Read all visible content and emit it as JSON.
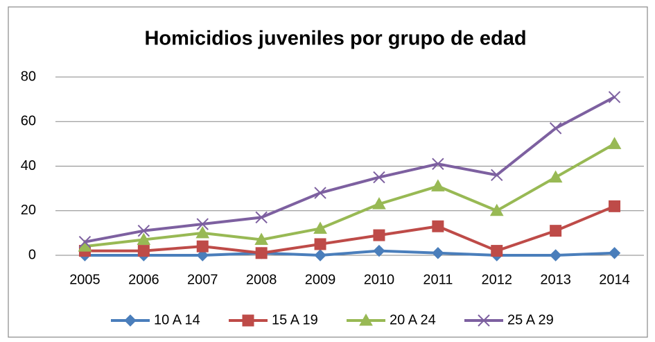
{
  "chart_data": {
    "type": "line",
    "title": "Homicidios juveniles por grupo de edad",
    "categories": [
      "2005",
      "2006",
      "2007",
      "2008",
      "2009",
      "2010",
      "2011",
      "2012",
      "2013",
      "2014"
    ],
    "series": [
      {
        "name": "10 A 14",
        "color": "#4a7ebb",
        "marker": "diamond",
        "values": [
          0,
          0,
          0,
          1,
          0,
          2,
          1,
          0,
          0,
          1
        ]
      },
      {
        "name": "15 A 19",
        "color": "#be4b48",
        "marker": "square",
        "values": [
          2,
          2,
          4,
          1,
          5,
          9,
          13,
          2,
          11,
          22
        ]
      },
      {
        "name": "20 A 24",
        "color": "#98b954",
        "marker": "triangle",
        "values": [
          4,
          7,
          10,
          7,
          12,
          23,
          31,
          20,
          35,
          50
        ]
      },
      {
        "name": "25 A 29",
        "color": "#7d60a0",
        "marker": "x",
        "values": [
          6,
          11,
          14,
          17,
          28,
          35,
          41,
          36,
          57,
          71
        ]
      }
    ],
    "ylim": [
      0,
      80
    ],
    "yticks": [
      0,
      20,
      40,
      60,
      80
    ],
    "grid": true,
    "legend": "bottom"
  }
}
